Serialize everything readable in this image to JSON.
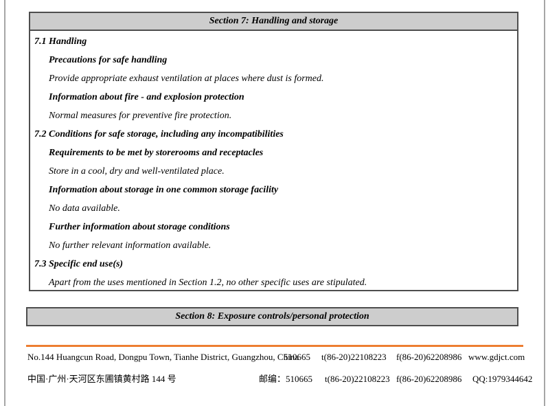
{
  "document": {
    "section7": {
      "header": "Section 7: Handling and storage",
      "lines": [
        {
          "level": "sub",
          "text": "7.1 Handling"
        },
        {
          "level": "heading",
          "text": "Precautions for safe handling"
        },
        {
          "level": "body",
          "text": "Provide appropriate exhaust ventilation at places where dust is formed."
        },
        {
          "level": "heading",
          "text": "Information about fire - and explosion protection"
        },
        {
          "level": "body",
          "text": "Normal measures for preventive fire protection."
        },
        {
          "level": "sub",
          "text": "7.2 Conditions for safe storage, including any incompatibilities"
        },
        {
          "level": "heading",
          "text": "Requirements to be met by storerooms and receptacles"
        },
        {
          "level": "body",
          "text": "Store in a cool, dry and well-ventilated place."
        },
        {
          "level": "heading",
          "text": "Information about storage in one common storage facility"
        },
        {
          "level": "body",
          "text": "No data available."
        },
        {
          "level": "heading",
          "text": "Further information about storage conditions"
        },
        {
          "level": "body",
          "text": "No further relevant information available."
        },
        {
          "level": "sub",
          "text": "7.3 Specific end use(s)"
        },
        {
          "level": "body",
          "text": "Apart from the uses mentioned in Section 1.2, no other specific uses are stipulated."
        }
      ]
    },
    "section8": {
      "header": "Section 8: Exposure controls/personal protection"
    },
    "footer": {
      "row1": {
        "address": "No.144 Huangcun Road, Dongpu Town, Tianhe District, Guangzhou, China",
        "postcode": "510665",
        "tel": "t(86-20)22108223",
        "fax": "f(86-20)62208986",
        "website": "www.gdjct.com"
      },
      "row2": {
        "address": "中国·广州·天河区东圃镇黄村路 144 号",
        "postcode": "邮编：510665",
        "tel": "t(86-20)22108223",
        "fax": "f(86-20)62208986",
        "qq": "QQ:1979344642"
      }
    },
    "colors": {
      "header_bar_bg": "#CDCDCD",
      "header_bar_border": "#4D4D4D",
      "accent_line": "#ED7D31"
    }
  }
}
